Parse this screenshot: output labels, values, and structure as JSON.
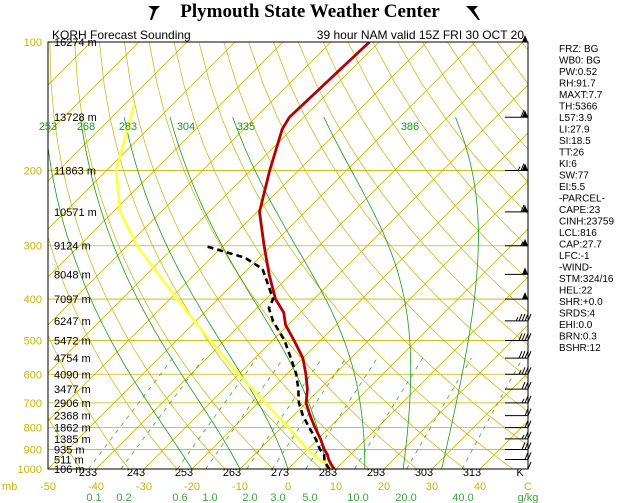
{
  "header": {
    "title": "Plymouth State Weather Center",
    "subtitle_left": "KORH Forecast Sounding",
    "subtitle_right": "39 hour NAM valid 15Z FRI 30 OCT 20"
  },
  "colors": {
    "frame": "#000000",
    "isobar": "#c8b400",
    "isotherm": "#c8b400",
    "dry_adiabat": "#c8b400",
    "moist_adiabat": "#1a9a1a",
    "mixing_ratio": "#3aa63a",
    "temperature": "#b40000",
    "dewpoint": "#000000",
    "parcel": "#ffff3a",
    "pressure_label": "#c8b400",
    "theta_label": "#1a9a1a",
    "temp_label": "#000000"
  },
  "chart_data": {
    "type": "line",
    "chart_subtype": "skew-t log-p",
    "pressure_levels": [
      {
        "p": 1000,
        "label": "1000"
      },
      {
        "p": 900,
        "label": "900"
      },
      {
        "p": 800,
        "label": "800"
      },
      {
        "p": 700,
        "label": "700"
      },
      {
        "p": 600,
        "label": "600"
      },
      {
        "p": 500,
        "label": "500"
      },
      {
        "p": 400,
        "label": "400"
      },
      {
        "p": 300,
        "label": "300"
      },
      {
        "p": 200,
        "label": "200"
      },
      {
        "p": 100,
        "label": "100"
      }
    ],
    "height_labels": [
      {
        "p": 100,
        "label": "16274 m"
      },
      {
        "p": 150,
        "label": "13728 m"
      },
      {
        "p": 200,
        "label": "11863 m"
      },
      {
        "p": 250,
        "label": "10571 m"
      },
      {
        "p": 300,
        "label": "9124 m"
      },
      {
        "p": 350,
        "label": "8048 m"
      },
      {
        "p": 400,
        "label": "7097 m"
      },
      {
        "p": 450,
        "label": "6247 m"
      },
      {
        "p": 500,
        "label": "5472 m"
      },
      {
        "p": 550,
        "label": "4754 m"
      },
      {
        "p": 600,
        "label": "4090 m"
      },
      {
        "p": 650,
        "label": "3477 m"
      },
      {
        "p": 700,
        "label": "2906 m"
      },
      {
        "p": 750,
        "label": "2368 m"
      },
      {
        "p": 800,
        "label": "1862 m"
      },
      {
        "p": 850,
        "label": "1385 m"
      },
      {
        "p": 900,
        "label": "935 m"
      },
      {
        "p": 950,
        "label": "511 m"
      },
      {
        "p": 1000,
        "label": "106 m"
      }
    ],
    "bottom_pressure_label": "mb",
    "temperature_axis": {
      "unit": "C",
      "ticks": [
        -50,
        -40,
        -30,
        -20,
        -10,
        0,
        10,
        20,
        30,
        40,
        50
      ],
      "tick_labels": [
        "-50",
        "-40",
        "-30",
        "-20",
        "-10",
        "0",
        "10",
        "20",
        "30",
        "40",
        "C"
      ],
      "range": [
        -50,
        50
      ]
    },
    "kelvin_labels": [
      {
        "t": -40,
        "label": "233"
      },
      {
        "t": -30,
        "label": "243"
      },
      {
        "t": -20,
        "label": "253"
      },
      {
        "t": -10,
        "label": "263"
      },
      {
        "t": 0,
        "label": "273"
      },
      {
        "t": 10,
        "label": "283"
      },
      {
        "t": 20,
        "label": "293"
      },
      {
        "t": 30,
        "label": "303"
      },
      {
        "t": 40,
        "label": "313"
      },
      {
        "t": 50,
        "label": "K"
      }
    ],
    "theta_e_labels": [
      {
        "label": "253"
      },
      {
        "label": "268"
      },
      {
        "label": "283"
      },
      {
        "label": "304"
      },
      {
        "label": "335"
      },
      {
        "label": "386"
      }
    ],
    "mixing_ratio_labels": [
      "0.1",
      "0.2",
      "0.6",
      "1.0",
      "2.0",
      "3.0",
      "5.0",
      "10.0",
      "20.0",
      "40.0",
      "g/kg"
    ],
    "temperature_profile": [
      {
        "p": 1000,
        "t": 9.6
      },
      {
        "p": 975,
        "t": 8.0
      },
      {
        "p": 950,
        "t": 6.5
      },
      {
        "p": 925,
        "t": 5.2
      },
      {
        "p": 900,
        "t": 3.5
      },
      {
        "p": 850,
        "t": 0.5
      },
      {
        "p": 800,
        "t": -3.0
      },
      {
        "p": 750,
        "t": -6.5
      },
      {
        "p": 700,
        "t": -10.0
      },
      {
        "p": 650,
        "t": -12.6
      },
      {
        "p": 600,
        "t": -16.0
      },
      {
        "p": 550,
        "t": -20.0
      },
      {
        "p": 500,
        "t": -25.5
      },
      {
        "p": 460,
        "t": -30.5
      },
      {
        "p": 430,
        "t": -33.5
      },
      {
        "p": 400,
        "t": -38.0
      },
      {
        "p": 350,
        "t": -44.5
      },
      {
        "p": 300,
        "t": -51.5
      },
      {
        "p": 250,
        "t": -59.5
      },
      {
        "p": 200,
        "t": -66.0
      },
      {
        "p": 160,
        "t": -72.0
      },
      {
        "p": 150,
        "t": -73.0
      },
      {
        "p": 100,
        "t": -72.0
      }
    ],
    "dewpoint_profile": [
      {
        "p": 1000,
        "t": 8.6
      },
      {
        "p": 975,
        "t": 7.0
      },
      {
        "p": 950,
        "t": 5.6
      },
      {
        "p": 925,
        "t": 4.5
      },
      {
        "p": 900,
        "t": 2.6
      },
      {
        "p": 850,
        "t": -0.5
      },
      {
        "p": 800,
        "t": -4.2
      },
      {
        "p": 750,
        "t": -8.0
      },
      {
        "p": 700,
        "t": -11.5
      },
      {
        "p": 650,
        "t": -14.5
      },
      {
        "p": 600,
        "t": -18.0
      },
      {
        "p": 550,
        "t": -22.5
      },
      {
        "p": 500,
        "t": -27.5
      },
      {
        "p": 450,
        "t": -34.0
      },
      {
        "p": 420,
        "t": -37.5
      },
      {
        "p": 400,
        "t": -38.5
      },
      {
        "p": 360,
        "t": -44.0
      },
      {
        "p": 340,
        "t": -47.0
      },
      {
        "p": 320,
        "t": -53.0
      },
      {
        "p": 300,
        "t": -64.0
      }
    ],
    "parcel_profile": [
      {
        "p": 1000,
        "t": 9.6
      },
      {
        "p": 950,
        "t": 4.5
      },
      {
        "p": 900,
        "t": 0.0
      },
      {
        "p": 800,
        "t": -8.5
      },
      {
        "p": 700,
        "t": -18.5
      },
      {
        "p": 600,
        "t": -30.0
      },
      {
        "p": 500,
        "t": -43.0
      },
      {
        "p": 400,
        "t": -58.5
      },
      {
        "p": 300,
        "t": -78.0
      },
      {
        "p": 250,
        "t": -88.5
      },
      {
        "p": 200,
        "t": -98.0
      },
      {
        "p": 140,
        "t": -108.0
      }
    ],
    "winds": [
      {
        "p": 100,
        "speed": 50
      },
      {
        "p": 150,
        "speed": 60
      },
      {
        "p": 200,
        "speed": 65
      },
      {
        "p": 250,
        "speed": 60
      },
      {
        "p": 300,
        "speed": 55
      },
      {
        "p": 350,
        "speed": 50
      },
      {
        "p": 400,
        "speed": 50
      },
      {
        "p": 450,
        "speed": 45
      },
      {
        "p": 500,
        "speed": 40
      },
      {
        "p": 550,
        "speed": 40
      },
      {
        "p": 600,
        "speed": 35
      },
      {
        "p": 650,
        "speed": 30
      },
      {
        "p": 700,
        "speed": 25
      },
      {
        "p": 750,
        "speed": 20
      },
      {
        "p": 800,
        "speed": 20
      },
      {
        "p": 850,
        "speed": 25
      },
      {
        "p": 900,
        "speed": 30
      },
      {
        "p": 950,
        "speed": 20
      },
      {
        "p": 1000,
        "speed": 10
      }
    ],
    "xlabel": "",
    "ylabel": "",
    "grid": true
  },
  "indices": [
    "FRZ: BG",
    "WB0: BG",
    "PW:0.52",
    "RH:91.7",
    "MAXT:7.7",
    "TH:5366",
    "L57:3.9",
    "LI:27.9",
    "SI:18.5",
    "TT:26",
    "KI:6",
    "SW:77",
    "EI:5.5",
    "-PARCEL-",
    "CAPE:23",
    "CINH:23759",
    "LCL:816",
    "CAP:27.7",
    "LFC:-1",
    "-WIND-",
    "STM:324/16",
    "HEL:22",
    "SHR:+0.0",
    "SRDS:4",
    "EHI:0.0",
    "BRN:0.3",
    "BSHR:12"
  ]
}
